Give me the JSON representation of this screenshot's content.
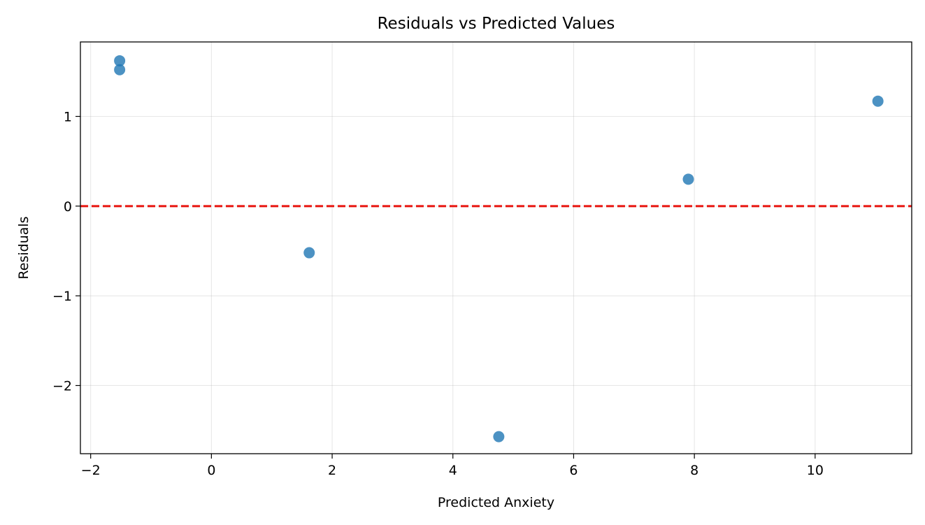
{
  "chart_data": {
    "type": "scatter",
    "title": "Residuals vs Predicted Values",
    "xlabel": "Predicted Anxiety",
    "ylabel": "Residuals",
    "xlim": [
      -2.17,
      11.6
    ],
    "ylim": [
      -2.76,
      1.83
    ],
    "xticks": [
      -2,
      0,
      2,
      4,
      6,
      8,
      10
    ],
    "yticks": [
      -2,
      -1,
      0,
      1
    ],
    "grid": true,
    "reference_line": {
      "y": 0,
      "style": "dashed",
      "color": "#e8150f"
    },
    "point_color": "#1f77b4",
    "points": [
      {
        "x": -1.52,
        "y": 1.62
      },
      {
        "x": -1.52,
        "y": 1.52
      },
      {
        "x": 1.62,
        "y": -0.52
      },
      {
        "x": 4.76,
        "y": -2.57
      },
      {
        "x": 7.9,
        "y": 0.3
      },
      {
        "x": 11.04,
        "y": 1.17
      }
    ]
  }
}
